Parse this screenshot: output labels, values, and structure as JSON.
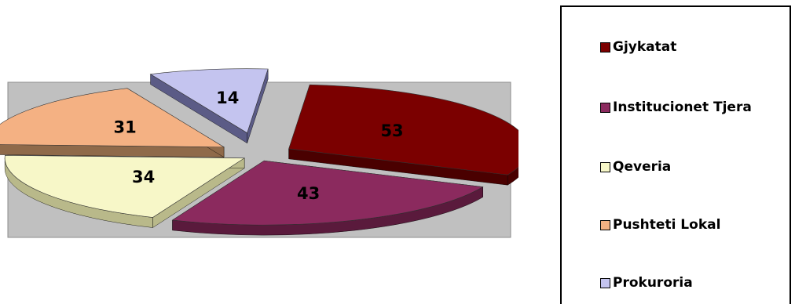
{
  "chart_data": {
    "type": "pie",
    "style": "3d-exploded",
    "categories": [
      "Gjykatat",
      "Institucionet Tjera",
      "Qeveria",
      "Pushteti Lokal",
      "Prokuroria"
    ],
    "values": [
      53,
      43,
      34,
      31,
      14
    ],
    "colors": [
      "#7b0000",
      "#8b2a5e",
      "#f7f7c8",
      "#f4b183",
      "#c4c4ef"
    ],
    "side_colors": [
      "#4a0000",
      "#5a1a3c",
      "#b9b98a",
      "#8f6a4a",
      "#5b5b86"
    ],
    "plot_background": "#c0c0c0",
    "legend_position": "right",
    "legend": [
      {
        "label": "Gjykatat",
        "color": "#7b0000"
      },
      {
        "label": "Institucionet Tjera",
        "color": "#8b2a5e"
      },
      {
        "label": "Qeveria",
        "color": "#f7f7c8"
      },
      {
        "label": "Pushteti Lokal",
        "color": "#f4b183"
      },
      {
        "label": "Prokuroria",
        "color": "#c4c4ef"
      }
    ]
  }
}
